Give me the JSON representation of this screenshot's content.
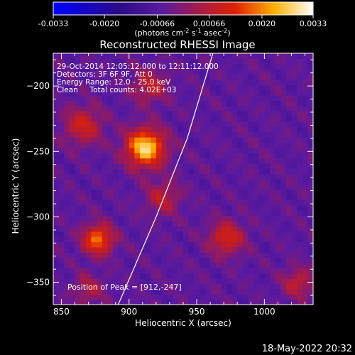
{
  "colorbar": {
    "ticks": [
      "-0.0033",
      "-0.0020",
      "-0.00066",
      "0.00066",
      "0.0020",
      "0.0033"
    ],
    "unit_base": "(photons cm",
    "unit_exp1": "-2",
    "unit_mid": " s",
    "unit_exp2": "-1",
    "unit_mid2": " asec",
    "unit_exp3": "-2",
    "unit_end": ")",
    "range": [
      -0.0033,
      0.0033
    ]
  },
  "chart_data": {
    "type": "heatmap",
    "title": "Reconstructed RHESSI Image",
    "xlabel": "Heliocentric X (arcsec)",
    "ylabel": "Heliocentric Y (arcsec)",
    "xlim": [
      844,
      1036
    ],
    "ylim": [
      -367,
      -175
    ],
    "x_ticks": [
      850,
      900,
      950,
      1000
    ],
    "y_ticks": [
      -200,
      -250,
      -300,
      -350
    ],
    "x_tick_labels": [
      "850",
      "900",
      "950",
      "1000"
    ],
    "y_tick_labels": [
      "−200",
      "−250",
      "−300",
      "−350"
    ],
    "info_lines": [
      "29-Oct-2014 12:05:12.000 to 12:11:12.000",
      "Detectors: 3F 6F 9F, Att 0",
      "Energy Range: 12.0 - 25.0 keV",
      "Clean     Total counts: 4.02E+03"
    ],
    "peak_label": "Position of Peak = [912,-247]",
    "peak": [
      912,
      -247
    ],
    "limb": [
      [
        892,
        -367
      ],
      [
        920,
        -300
      ],
      [
        943,
        -240
      ],
      [
        962,
        -175
      ]
    ],
    "sources": [
      {
        "x": 912,
        "y": -247,
        "amp": 0.0033,
        "sigma": 10
      },
      {
        "x": 877,
        "y": -317,
        "amp": 0.0024,
        "sigma": 8
      },
      {
        "x": 972,
        "y": -316,
        "amp": 0.0017,
        "sigma": 9
      },
      {
        "x": 866,
        "y": -230,
        "amp": 0.0015,
        "sigma": 10
      },
      {
        "x": 915,
        "y": -200,
        "amp": 0.0013,
        "sigma": 9
      },
      {
        "x": 925,
        "y": -285,
        "amp": 0.0012,
        "sigma": 9
      },
      {
        "x": 1025,
        "y": -350,
        "amp": 0.0013,
        "sigma": 8
      },
      {
        "x": 870,
        "y": -355,
        "amp": 0.001,
        "sigma": 8
      }
    ]
  },
  "footer": {
    "date": "18-May-2022 20:32"
  }
}
